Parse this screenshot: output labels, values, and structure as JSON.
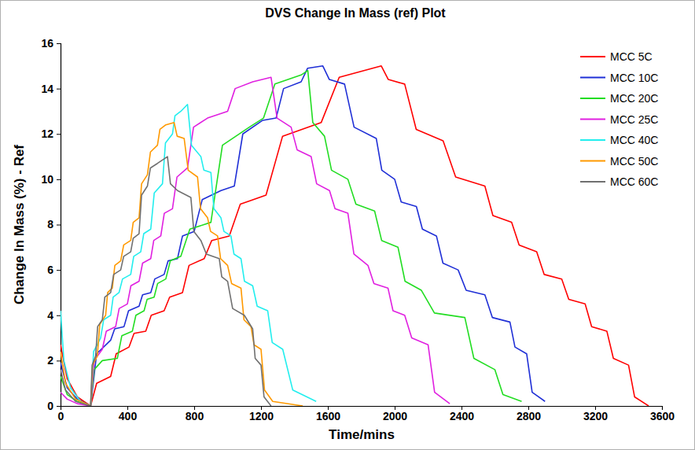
{
  "chart_data": {
    "type": "line",
    "title": "DVS Change In Mass (ref) Plot",
    "x_label": "Time/mins",
    "y_label": "Change In Mass (%) - Ref",
    "xlim": [
      0,
      3600
    ],
    "ylim": [
      0,
      16
    ],
    "xticks": [
      0,
      400,
      800,
      1200,
      1600,
      2000,
      2400,
      2800,
      3200,
      3600
    ],
    "yticks": [
      0,
      2,
      4,
      6,
      8,
      10,
      12,
      14,
      16
    ],
    "grid": false,
    "legend": "top-right",
    "series": [
      {
        "name": "MCC 5C",
        "color": "#ff0000",
        "x": [
          0,
          40,
          100,
          180,
          216,
          300,
          333,
          410,
          440,
          510,
          543,
          620,
          653,
          730,
          769,
          860,
          905,
          1010,
          1076,
          1230,
          1329,
          1560,
          1668,
          1920,
          1962,
          2060,
          2129,
          2290,
          2365,
          2540,
          2588,
          2700,
          2745,
          2850,
          2895,
          3000,
          3042,
          3140,
          3179,
          3270,
          3309,
          3400,
          3436,
          3520
        ],
        "values": [
          2.7,
          1.2,
          0.4,
          0,
          1.0,
          1.3,
          2.3,
          2.6,
          3.2,
          3.3,
          4.0,
          4.2,
          4.8,
          5.0,
          6.2,
          6.5,
          7.3,
          7.5,
          8.9,
          9.3,
          11.9,
          12.5,
          14.5,
          15.0,
          14.4,
          14.2,
          12.2,
          11.7,
          10.1,
          9.7,
          8.4,
          8.1,
          7.1,
          6.8,
          5.8,
          5.6,
          4.7,
          4.5,
          3.5,
          3.3,
          2.1,
          1.8,
          0.4,
          0.0
        ]
      },
      {
        "name": "MCC 10C",
        "color": "#1f2fd6",
        "x": [
          0,
          40,
          100,
          180,
          216,
          300,
          324,
          380,
          407,
          470,
          491,
          540,
          564,
          620,
          644,
          700,
          730,
          800,
          848,
          960,
          1040,
          1091,
          1210,
          1290,
          1335,
          1440,
          1479,
          1570,
          1609,
          1700,
          1757,
          1890,
          1923,
          2000,
          2039,
          2130,
          2166,
          2250,
          2289,
          2380,
          2428,
          2540,
          2585,
          2690,
          2720,
          2790,
          2823,
          2900
        ],
        "values": [
          1.9,
          0.8,
          0.3,
          0,
          2.3,
          2.9,
          3.4,
          3.5,
          4.2,
          4.4,
          4.9,
          5.0,
          5.6,
          5.8,
          6.4,
          6.5,
          7.5,
          7.7,
          9.1,
          9.5,
          9.7,
          12.0,
          12.6,
          12.7,
          14.0,
          14.3,
          14.9,
          15.0,
          14.4,
          14.2,
          12.3,
          11.8,
          10.4,
          10.0,
          9.0,
          8.8,
          7.8,
          7.5,
          6.3,
          6.0,
          5.1,
          4.9,
          3.9,
          3.7,
          2.6,
          2.3,
          0.6,
          0.2
        ]
      },
      {
        "name": "MCC 20C",
        "color": "#22dd22",
        "x": [
          0,
          40,
          100,
          180,
          201,
          250,
          340,
          367,
          430,
          451,
          500,
          518,
          560,
          581,
          630,
          657,
          720,
          774,
          900,
          969,
          1130,
          1215,
          1283,
          1440,
          1480,
          1510,
          1580,
          1622,
          1720,
          1768,
          1880,
          1922,
          2020,
          2062,
          2160,
          2238,
          2420,
          2474,
          2600,
          2648,
          2760
        ],
        "values": [
          1.3,
          0.5,
          0.2,
          0,
          1.6,
          2.0,
          2.1,
          3.1,
          3.3,
          4.0,
          4.2,
          4.7,
          4.8,
          5.4,
          5.6,
          6.4,
          6.6,
          7.8,
          8.1,
          11.5,
          12.3,
          12.7,
          14.2,
          14.6,
          14.8,
          12.5,
          11.9,
          10.4,
          10.0,
          8.9,
          8.6,
          7.3,
          7.0,
          5.5,
          5.1,
          4.1,
          3.9,
          2.1,
          1.6,
          0.5,
          0.2
        ]
      },
      {
        "name": "MCC 25C",
        "color": "#e020e0",
        "x": [
          0,
          40,
          100,
          180,
          201,
          250,
          274,
          330,
          351,
          400,
          421,
          470,
          491,
          540,
          558,
          600,
          621,
          670,
          697,
          760,
          796,
          880,
          1000,
          1045,
          1150,
          1260,
          1296,
          1380,
          1416,
          1500,
          1533,
          1610,
          1643,
          1720,
          1756,
          1840,
          1876,
          1960,
          1990,
          2060,
          2102,
          2200,
          2239,
          2330
        ],
        "values": [
          0.6,
          0.3,
          0.1,
          0,
          2.0,
          2.5,
          3.3,
          3.5,
          4.3,
          4.5,
          5.3,
          5.5,
          6.3,
          6.5,
          7.3,
          7.5,
          8.5,
          8.7,
          10.1,
          10.5,
          12.3,
          12.7,
          13.0,
          14.0,
          14.3,
          14.5,
          12.7,
          12.3,
          11.3,
          11.0,
          9.8,
          9.5,
          8.7,
          8.5,
          6.7,
          6.2,
          5.4,
          5.2,
          4.2,
          4.0,
          3.0,
          2.7,
          0.6,
          0.1
        ]
      },
      {
        "name": "MCC 40C",
        "color": "#22eeee",
        "x": [
          0,
          20,
          60,
          120,
          180,
          198,
          240,
          258,
          300,
          315,
          350,
          371,
          420,
          438,
          480,
          498,
          540,
          561,
          610,
          628,
          670,
          685,
          720,
          760,
          784,
          840,
          858,
          900,
          918,
          960,
          978,
          1020,
          1038,
          1080,
          1101,
          1150,
          1177,
          1240,
          1267,
          1330,
          1390,
          1530
        ],
        "values": [
          4.2,
          2.0,
          0.8,
          0.2,
          0,
          2.4,
          3.0,
          3.8,
          4.0,
          4.8,
          5.0,
          5.6,
          5.8,
          6.6,
          6.8,
          7.6,
          7.8,
          9.4,
          9.8,
          11.6,
          12.0,
          12.8,
          13.0,
          13.3,
          11.5,
          11.0,
          10.4,
          10.3,
          8.7,
          8.3,
          7.7,
          7.5,
          6.7,
          6.5,
          5.5,
          5.3,
          4.4,
          4.2,
          2.8,
          2.5,
          0.7,
          0.2
        ]
      },
      {
        "name": "MCC 50C",
        "color": "#ff9900",
        "x": [
          0,
          30,
          90,
          180,
          192,
          220,
          235,
          270,
          282,
          310,
          325,
          360,
          378,
          420,
          435,
          470,
          485,
          520,
          538,
          580,
          595,
          630,
          680,
          698,
          740,
          764,
          820,
          838,
          880,
          898,
          940,
          958,
          1000,
          1024,
          1080,
          1098,
          1140,
          1158,
          1200,
          1221,
          1270,
          1450
        ],
        "values": [
          2.4,
          1.0,
          0.3,
          0,
          1.8,
          2.2,
          3.6,
          4.0,
          5.0,
          5.2,
          6.2,
          6.4,
          7.1,
          7.3,
          8.1,
          8.3,
          9.8,
          10.2,
          11.2,
          11.5,
          12.2,
          12.4,
          12.5,
          11.9,
          11.8,
          10.4,
          10.1,
          8.7,
          8.3,
          7.7,
          7.5,
          6.5,
          6.2,
          5.4,
          5.2,
          3.8,
          3.5,
          2.7,
          2.5,
          0.7,
          0.2,
          0.0
        ]
      },
      {
        "name": "MCC 60C",
        "color": "#707070",
        "x": [
          0,
          30,
          90,
          180,
          189,
          210,
          222,
          250,
          265,
          300,
          318,
          360,
          378,
          420,
          435,
          470,
          485,
          520,
          538,
          580,
          640,
          658,
          700,
          780,
          798,
          840,
          873,
          950,
          965,
          1000,
          1030,
          1100,
          1150,
          1165,
          1200,
          1218,
          1260
        ],
        "values": [
          1.6,
          0.7,
          0.2,
          0,
          1.8,
          2.2,
          3.5,
          3.8,
          4.8,
          5.0,
          5.8,
          6.0,
          6.6,
          6.8,
          7.4,
          7.6,
          9.3,
          9.7,
          10.5,
          10.7,
          11.0,
          9.8,
          9.5,
          9.2,
          7.7,
          7.3,
          6.7,
          6.5,
          5.7,
          5.5,
          4.3,
          4.0,
          3.4,
          2.1,
          1.8,
          0.4,
          0.0
        ]
      }
    ]
  }
}
